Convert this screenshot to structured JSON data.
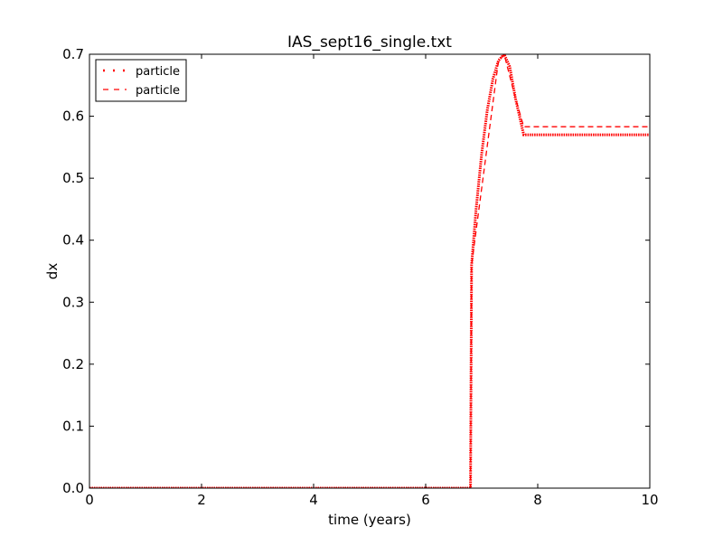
{
  "chart_data": {
    "type": "line",
    "title": "IAS_sept16_single.txt",
    "xlabel": "time (years)",
    "ylabel": "dx",
    "xlim": [
      0,
      10
    ],
    "ylim": [
      0,
      0.7
    ],
    "xticks": [
      0,
      2,
      4,
      6,
      8,
      10
    ],
    "xtick_labels": [
      "0",
      "2",
      "4",
      "6",
      "8",
      "10"
    ],
    "yticks": [
      0.0,
      0.1,
      0.2,
      0.3,
      0.4,
      0.5,
      0.6,
      0.7
    ],
    "ytick_labels": [
      "0.0",
      "0.1",
      "0.2",
      "0.3",
      "0.4",
      "0.5",
      "0.6",
      "0.7"
    ],
    "grid": false,
    "legend_position": "top-left",
    "series": [
      {
        "name": "particle",
        "style": "dotted",
        "color": "#ff0000",
        "x": [
          0,
          6.8,
          6.82,
          6.9,
          7.0,
          7.1,
          7.2,
          7.3,
          7.4,
          7.5,
          7.6,
          7.7,
          7.75,
          8.0,
          9.0,
          10.0
        ],
        "y": [
          0,
          0,
          0.36,
          0.45,
          0.54,
          0.61,
          0.66,
          0.69,
          0.7,
          0.68,
          0.63,
          0.59,
          0.57,
          0.57,
          0.57,
          0.57
        ]
      },
      {
        "name": "particle",
        "style": "dashed",
        "color": "#ff0000",
        "x": [
          0,
          6.8,
          6.82,
          7.3,
          7.4,
          7.6,
          7.75,
          10.0
        ],
        "y": [
          0,
          0,
          0.36,
          0.69,
          0.7,
          0.63,
          0.583,
          0.583
        ]
      }
    ]
  }
}
